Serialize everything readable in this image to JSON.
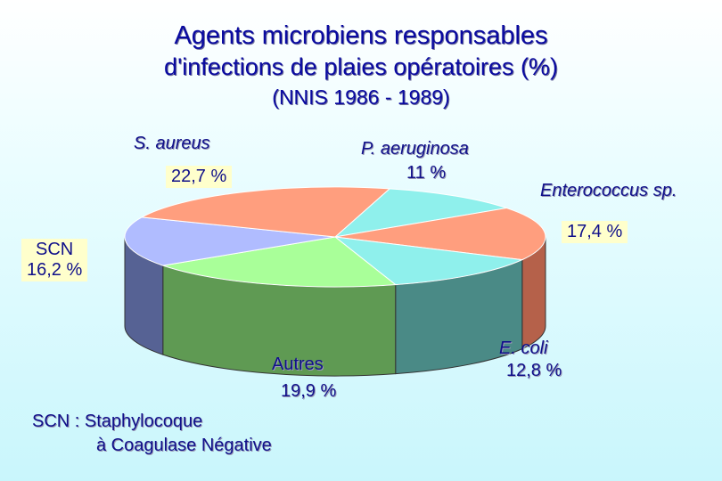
{
  "title": {
    "line1": "Agents microbiens responsables",
    "line2": "d'infections de plaies opératoires (%)",
    "line3": "(NNIS 1986 - 1989)"
  },
  "chart_data": {
    "type": "pie",
    "slices": [
      {
        "label": "P. aeruginosa",
        "value": 11,
        "value_text": "11 %",
        "color": "#8ff0ec",
        "side": "#4a9a98"
      },
      {
        "label": "Enterococcus sp.",
        "value": 17.4,
        "value_text": "17,4 %",
        "color": "#ff9e7e",
        "side": "#b5614a"
      },
      {
        "label": "E. coli",
        "value": 12.8,
        "value_text": "12,8 %",
        "color": "#8ff0ec",
        "side": "#4a8a86"
      },
      {
        "label": "Autres",
        "value": 19.9,
        "value_text": "19,9 %",
        "color": "#a9ff99",
        "side": "#5f9a53"
      },
      {
        "label": "SCN",
        "value": 16.2,
        "value_text": "16,2 %",
        "color": "#b0bcff",
        "side": "#566294"
      },
      {
        "label": "S. aureus",
        "value": 22.7,
        "value_text": "22,7 %",
        "color": "#ff9e7e",
        "side": "#b5614a"
      }
    ]
  },
  "footnote": {
    "line1": "SCN : Staphylocoque",
    "line2": "à Coagulase Négative"
  }
}
